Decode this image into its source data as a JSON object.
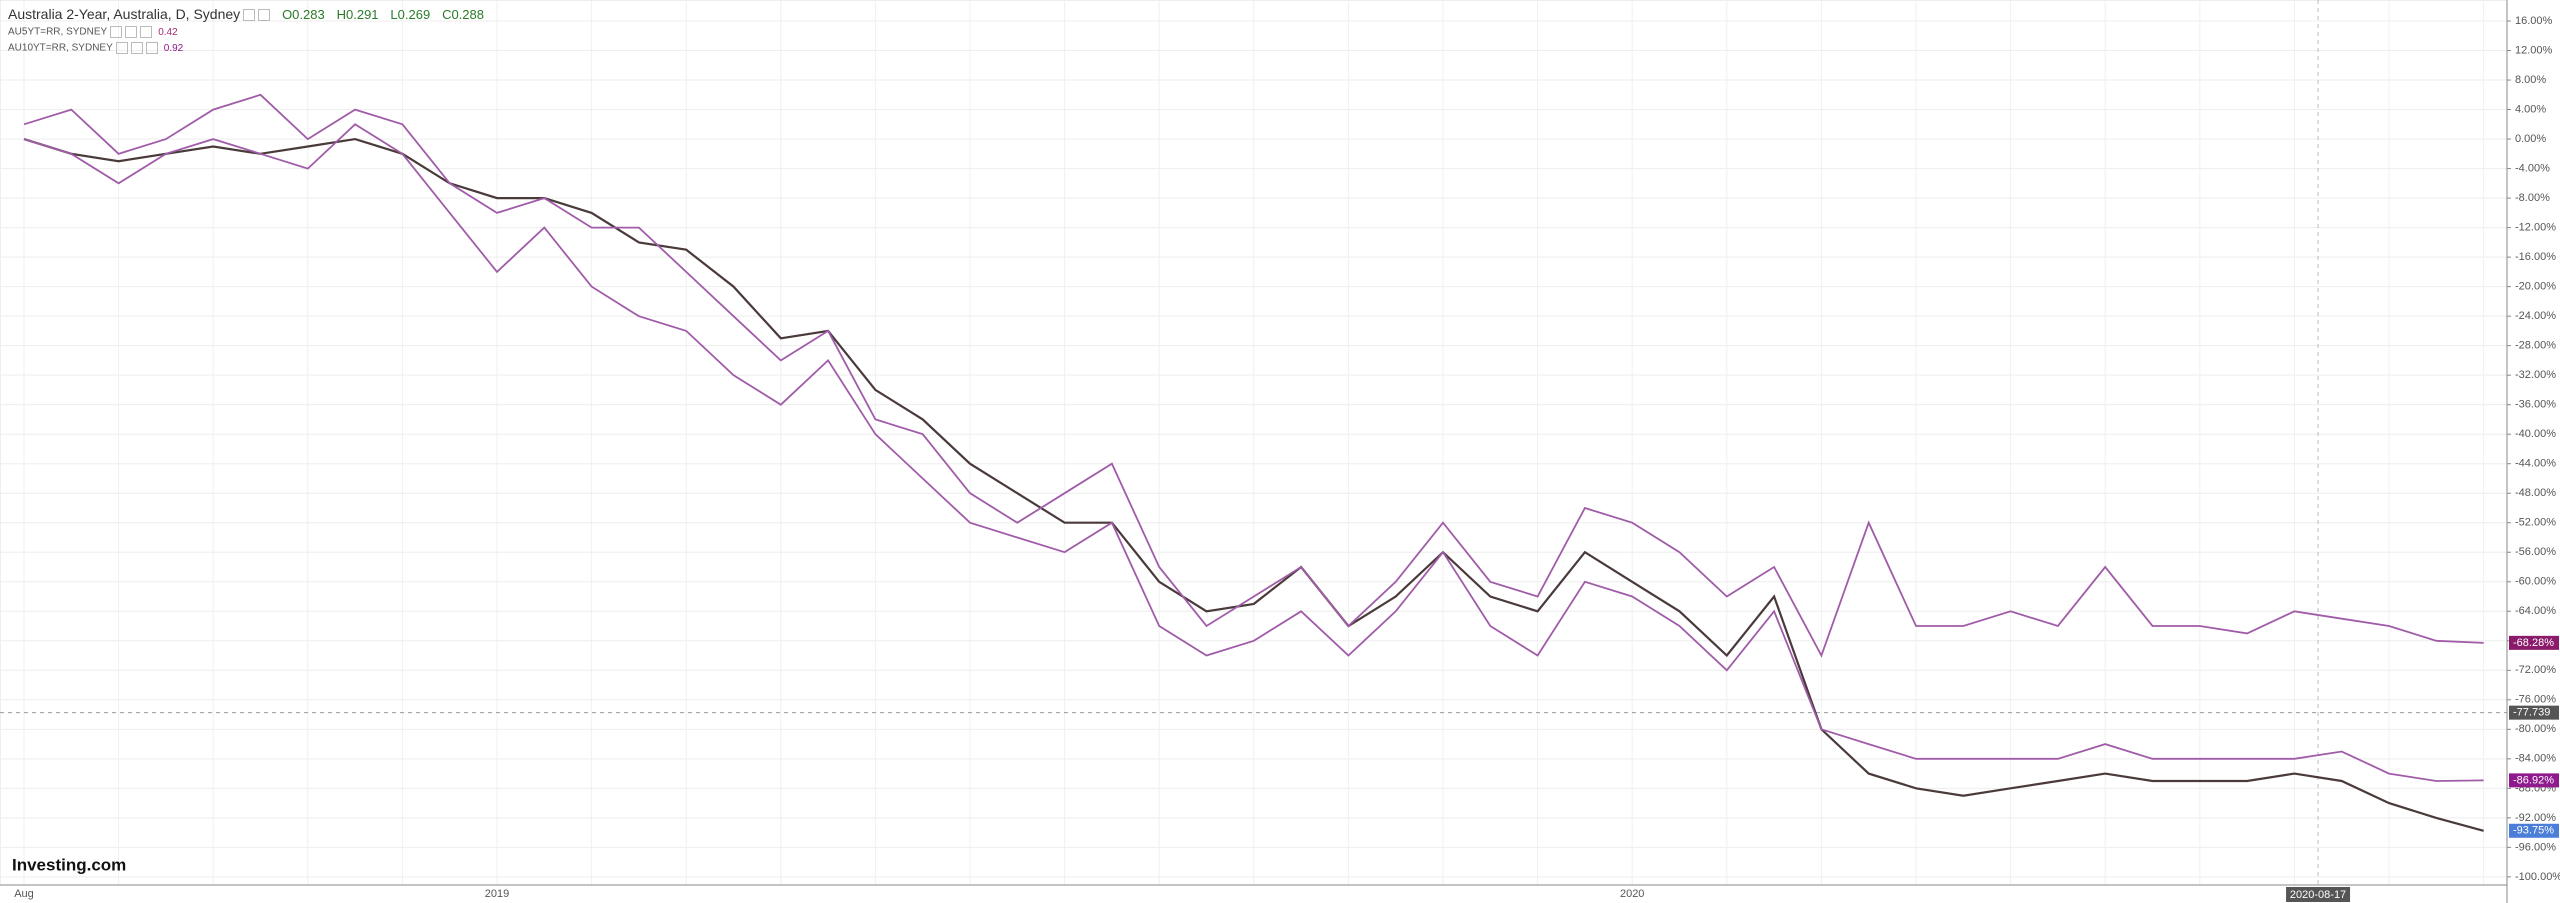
{
  "chart_data": {
    "type": "line",
    "title": "Australia 2-Year, Australia, D, Sydney",
    "ohlc": [
      "O0.283",
      "H0.291",
      "L0.269",
      "C0.288"
    ],
    "logo": "Investing.com",
    "categories": [
      "Aug",
      null,
      null,
      null,
      null,
      null,
      null,
      null,
      null,
      null,
      "2019",
      null,
      null,
      null,
      null,
      null,
      null,
      null,
      null,
      null,
      null,
      null,
      null,
      null,
      null,
      null,
      null,
      null,
      null,
      null,
      null,
      null,
      null,
      null,
      "2020",
      null,
      null,
      null,
      null,
      null,
      null,
      null,
      null,
      null,
      null,
      null,
      null,
      null,
      null,
      null,
      null,
      null,
      null
    ],
    "series": [
      {
        "name": "Australia 2-Year",
        "color": "#4a3a3a",
        "last_label": "-93.75%",
        "label_color": "#4a7ed8",
        "values": [
          0,
          -2,
          -3,
          -2,
          -1,
          -2,
          -1,
          0,
          -2,
          -6,
          -8,
          -8,
          -10,
          -14,
          -15,
          -20,
          -27,
          -26,
          -34,
          -38,
          -44,
          -48,
          -52,
          -52,
          -60,
          -64,
          -63,
          -58,
          -66,
          -62,
          -56,
          -62,
          -64,
          -56,
          -60,
          -64,
          -70,
          -62,
          -80,
          -86,
          -88,
          -89,
          -88,
          -87,
          -86,
          -87,
          -87,
          -87,
          -86,
          -87,
          -90,
          -92,
          -93.75
        ]
      },
      {
        "name": "AU5YT=RR, SYDNEY",
        "legend_value": 0.42,
        "color": "#a05ca8",
        "last_label": "-86.92%",
        "label_color": "#8e1a8e",
        "values": [
          0,
          -2,
          -6,
          -2,
          0,
          -2,
          -4,
          2,
          -2,
          -10,
          -18,
          -12,
          -20,
          -24,
          -26,
          -32,
          -36,
          -30,
          -40,
          -46,
          -52,
          -54,
          -56,
          -52,
          -66,
          -70,
          -68,
          -64,
          -70,
          -64,
          -56,
          -66,
          -70,
          -60,
          -62,
          -66,
          -72,
          -64,
          -80,
          -82,
          -84,
          -84,
          -84,
          -84,
          -82,
          -84,
          -84,
          -84,
          -84,
          -83,
          -86,
          -87,
          -86.92
        ]
      },
      {
        "name": "AU10YT=RR, SYDNEY",
        "legend_value": 0.92,
        "color": "#a05ca8",
        "last_label": "-68.28%",
        "label_color": "#8b1a6b",
        "values": [
          2,
          4,
          -2,
          0,
          4,
          6,
          0,
          4,
          2,
          -6,
          -10,
          -8,
          -12,
          -12,
          -18,
          -24,
          -30,
          -26,
          -38,
          -40,
          -48,
          -52,
          -48,
          -44,
          -58,
          -66,
          -62,
          -58,
          -66,
          -60,
          -52,
          -60,
          -62,
          -50,
          -52,
          -56,
          -62,
          -58,
          -70,
          -52,
          -66,
          -66,
          -64,
          -66,
          -58,
          -66,
          -66,
          -67,
          -64,
          -65,
          -66,
          -68,
          -68.28
        ]
      }
    ],
    "ylim": [
      -101.1,
      18.85
    ],
    "yticks": [
      {
        "value": 16,
        "label": "16.00%"
      },
      {
        "value": 12,
        "label": "12.00%"
      },
      {
        "value": 8,
        "label": "8.00%"
      },
      {
        "value": 4,
        "label": "4.00%"
      },
      {
        "value": 0,
        "label": "0.00%"
      },
      {
        "value": -4,
        "label": "-4.00%"
      },
      {
        "value": -8,
        "label": "-8.00%"
      },
      {
        "value": -12,
        "label": "-12.00%"
      },
      {
        "value": -16,
        "label": "-16.00%"
      },
      {
        "value": -20,
        "label": "-20.00%"
      },
      {
        "value": -24,
        "label": "-24.00%"
      },
      {
        "value": -28,
        "label": "-28.00%"
      },
      {
        "value": -32,
        "label": "-32.00%"
      },
      {
        "value": -36,
        "label": "-36.00%"
      },
      {
        "value": -40,
        "label": "-40.00%"
      },
      {
        "value": -44,
        "label": "-44.00%"
      },
      {
        "value": -48,
        "label": "-48.00%"
      },
      {
        "value": -52,
        "label": "-52.00%"
      },
      {
        "value": -56,
        "label": "-56.00%"
      },
      {
        "value": -60,
        "label": "-60.00%"
      },
      {
        "value": -64,
        "label": "-64.00%"
      },
      {
        "value": -68,
        "label": "-68.00%"
      },
      {
        "value": -72,
        "label": "-72.00%"
      },
      {
        "value": -76,
        "label": "-76.00%"
      },
      {
        "value": -80,
        "label": "-80.00%"
      },
      {
        "value": -84,
        "label": "-84.00%"
      },
      {
        "value": -88,
        "label": "-88.00%"
      },
      {
        "value": -92,
        "label": "-92.00%"
      },
      {
        "value": -96,
        "label": "-96.00%"
      },
      {
        "value": -100,
        "label": "-100.00%"
      }
    ],
    "grid": true,
    "crosshair": {
      "x_label": "2020-08-17",
      "y": -77.739
    }
  }
}
